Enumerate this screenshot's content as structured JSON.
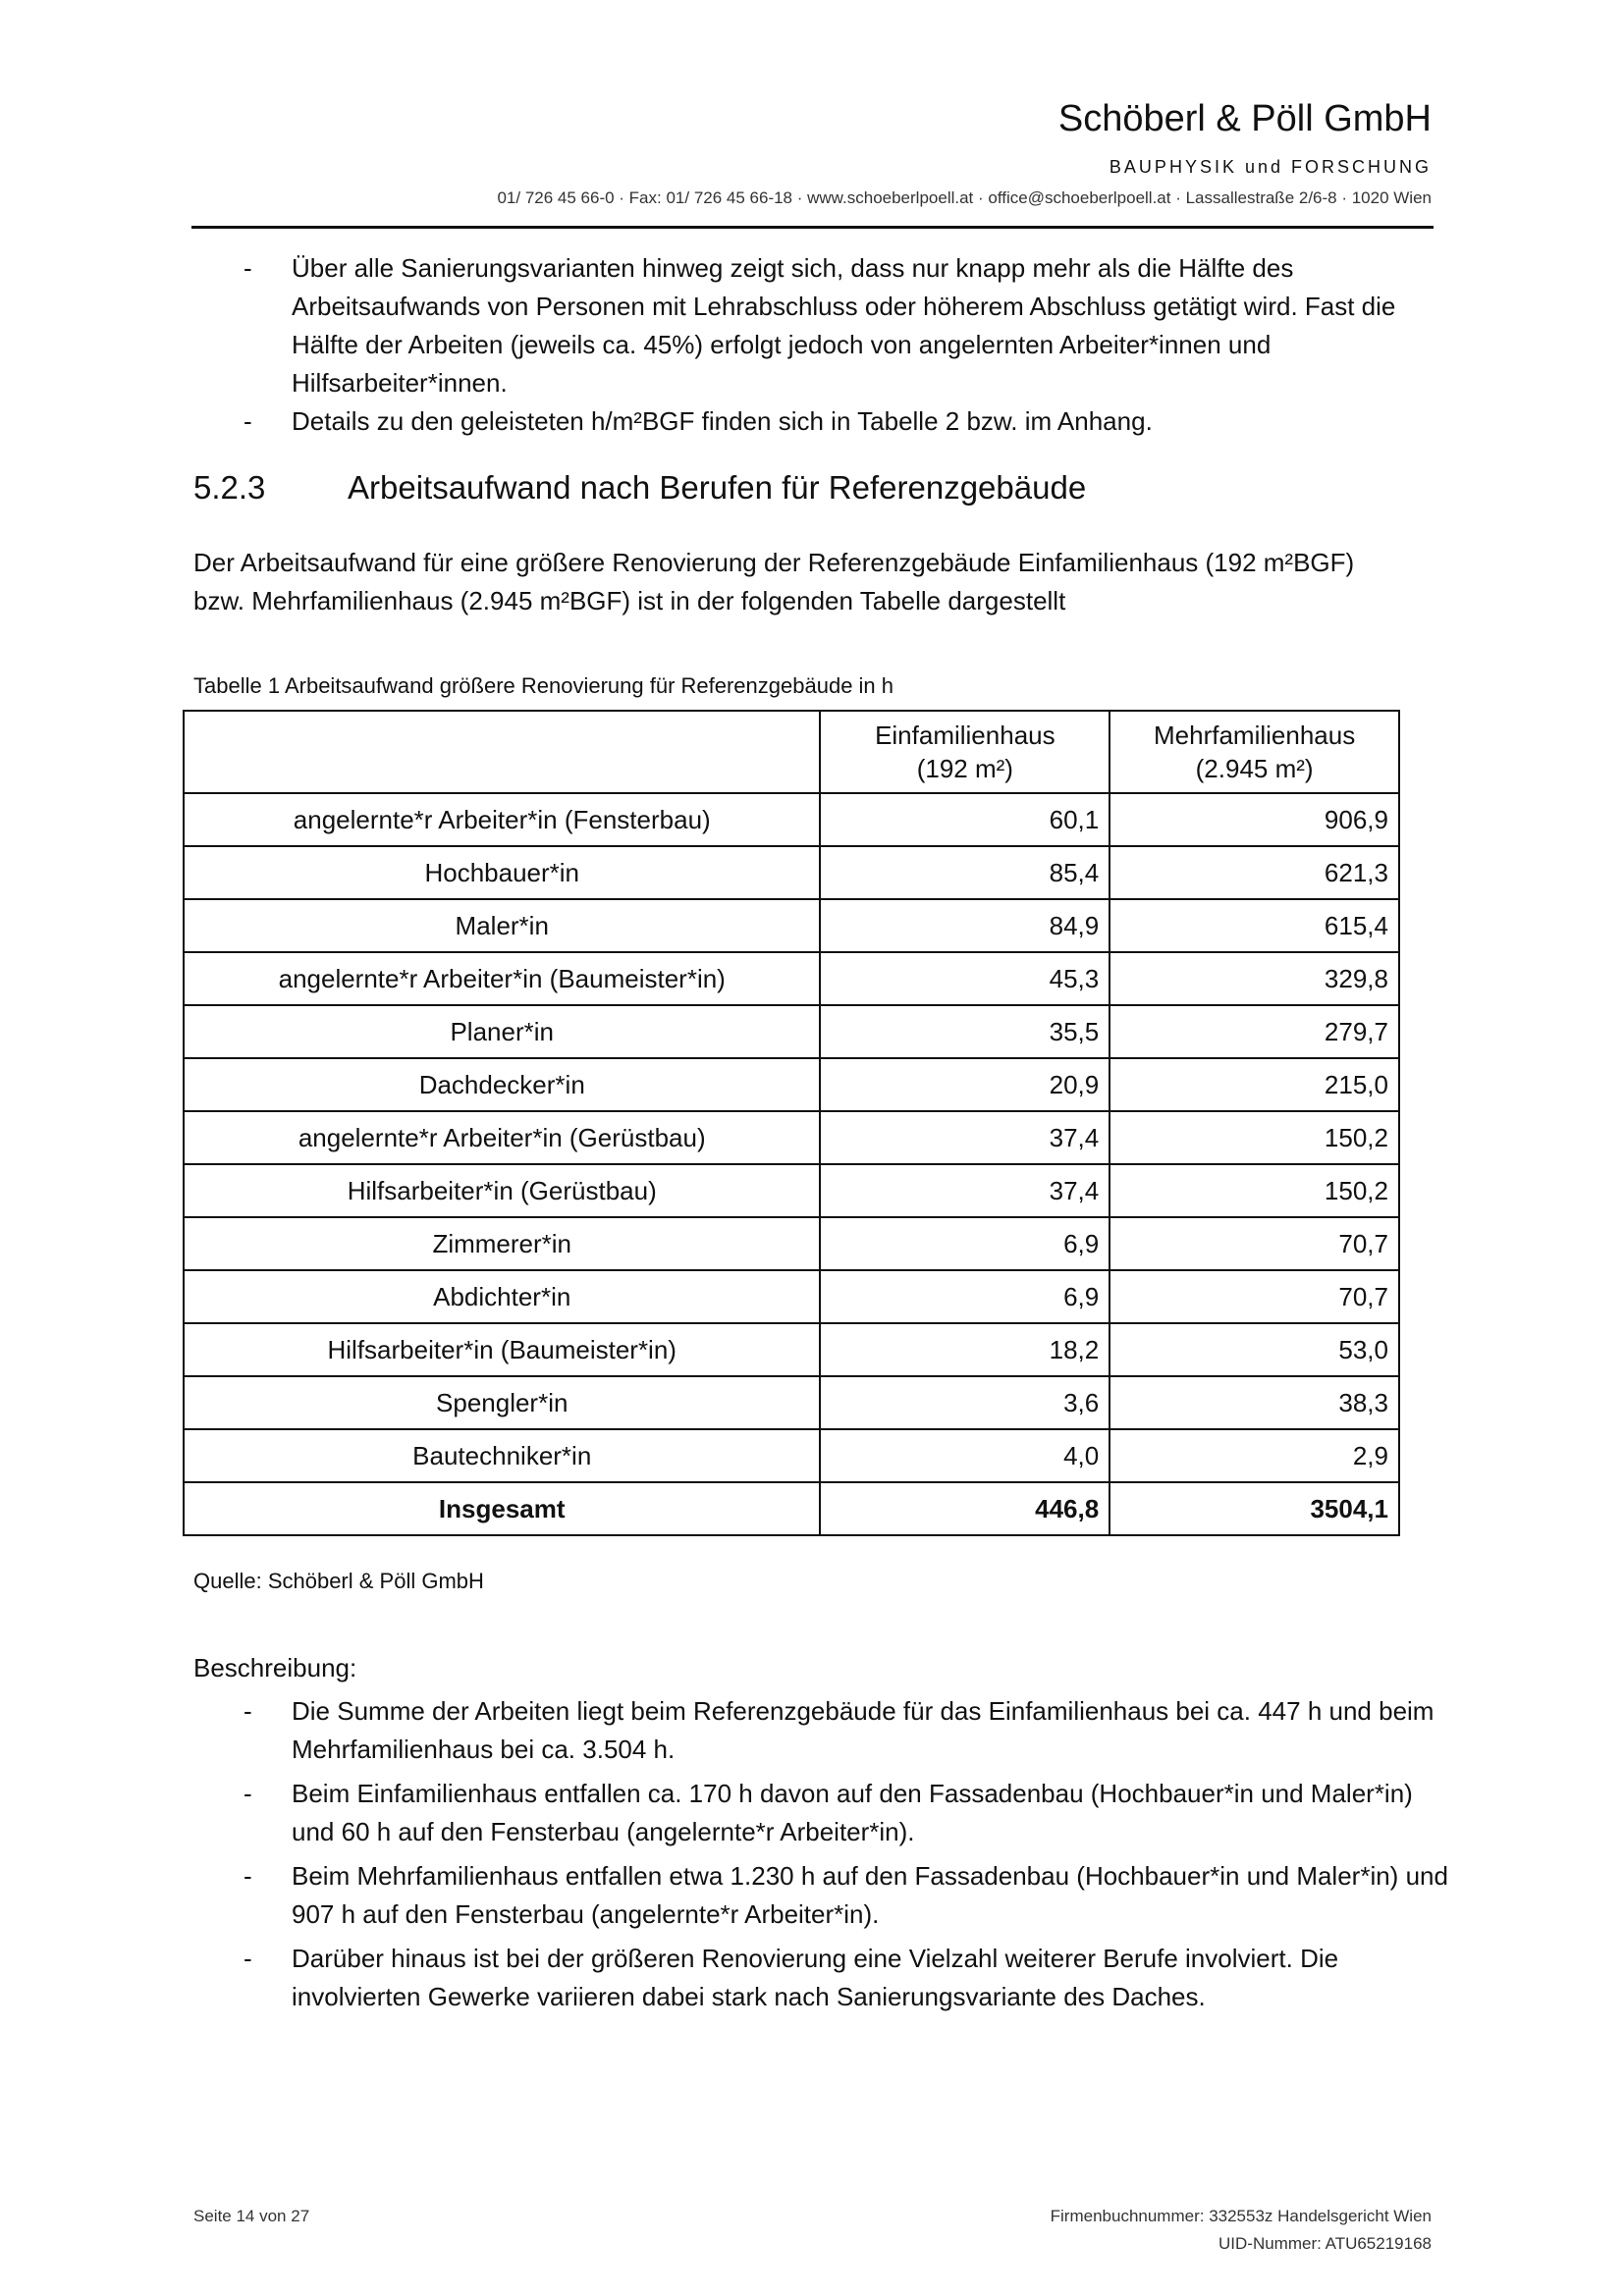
{
  "header": {
    "company": "Schöberl & Pöll GmbH",
    "tagline": "BAUPHYSIK und FORSCHUNG",
    "contact": "01/ 726 45 66-0 · Fax: 01/ 726 45 66-18 · www.schoeberlpoell.at · office@schoeberlpoell.at · Lassallestraße 2/6-8 · 1020 Wien"
  },
  "intro_bullets": [
    "Über alle Sanierungsvarianten hinweg zeigt sich, dass nur knapp mehr als die Hälfte des Arbeitsaufwands von Personen mit Lehrabschluss oder höherem Abschluss getätigt wird. Fast die Hälfte der Arbeiten (jeweils ca. 45%) erfolgt jedoch von angelernten Arbeiter*innen und Hilfsarbeiter*innen.",
    "Details zu den geleisteten h/m²BGF finden sich in Tabelle 2 bzw. im Anhang."
  ],
  "section": {
    "number": "5.2.3",
    "title": "Arbeitsaufwand nach Berufen für Referenzgebäude"
  },
  "paragraph": "Der Arbeitsaufwand für eine größere Renovierung der Referenzgebäude Einfamilienhaus (192 m²BGF) bzw. Mehrfamilienhaus (2.945 m²BGF) ist in der folgenden Tabelle dargestellt",
  "table": {
    "caption": "Tabelle 1 Arbeitsaufwand größere Renovierung für Referenzgebäude in h",
    "headers": [
      "",
      "Einfamilienhaus",
      "(192 m²)",
      "Mehrfamilienhaus",
      "(2.945 m²)"
    ],
    "rows": [
      [
        "angelernte*r Arbeiter*in (Fensterbau)",
        "60,1",
        "906,9"
      ],
      [
        "Hochbauer*in",
        "85,4",
        "621,3"
      ],
      [
        "Maler*in",
        "84,9",
        "615,4"
      ],
      [
        "angelernte*r Arbeiter*in (Baumeister*in)",
        "45,3",
        "329,8"
      ],
      [
        "Planer*in",
        "35,5",
        "279,7"
      ],
      [
        "Dachdecker*in",
        "20,9",
        "215,0"
      ],
      [
        "angelernte*r Arbeiter*in (Gerüstbau)",
        "37,4",
        "150,2"
      ],
      [
        "Hilfsarbeiter*in (Gerüstbau)",
        "37,4",
        "150,2"
      ],
      [
        "Zimmerer*in",
        "6,9",
        "70,7"
      ],
      [
        "Abdichter*in",
        "6,9",
        "70,7"
      ],
      [
        "Hilfsarbeiter*in (Baumeister*in)",
        "18,2",
        "53,0"
      ],
      [
        "Spengler*in",
        "3,6",
        "38,3"
      ],
      [
        "Bautechniker*in",
        "4,0",
        "2,9"
      ]
    ],
    "total": [
      "Insgesamt",
      "446,8",
      "3504,1"
    ],
    "source": "Quelle: Schöberl & Pöll GmbH"
  },
  "description": {
    "label": "Beschreibung:",
    "bullets": [
      "Die Summe der Arbeiten liegt beim Referenzgebäude für das Einfamilienhaus bei ca. 447 h und beim Mehrfamilienhaus bei ca. 3.504 h.",
      "Beim Einfamilienhaus entfallen ca. 170 h davon auf den Fassadenbau (Hochbauer*in und Maler*in) und 60 h auf den Fensterbau (angelernte*r Arbeiter*in).",
      "Beim Mehrfamilienhaus entfallen etwa 1.230 h auf den Fassadenbau (Hochbauer*in und Maler*in) und 907 h auf den Fensterbau (angelernte*r Arbeiter*in).",
      "Darüber hinaus ist bei der größeren Renovierung eine Vielzahl weiterer Berufe involviert. Die involvierten Gewerke variieren dabei stark nach Sanierungsvariante des Daches."
    ]
  },
  "footer": {
    "page": "Seite 14 von 27",
    "register": "Firmenbuchnummer: 332553z Handelsgericht Wien",
    "uid": "UID-Nummer: ATU65219168"
  }
}
